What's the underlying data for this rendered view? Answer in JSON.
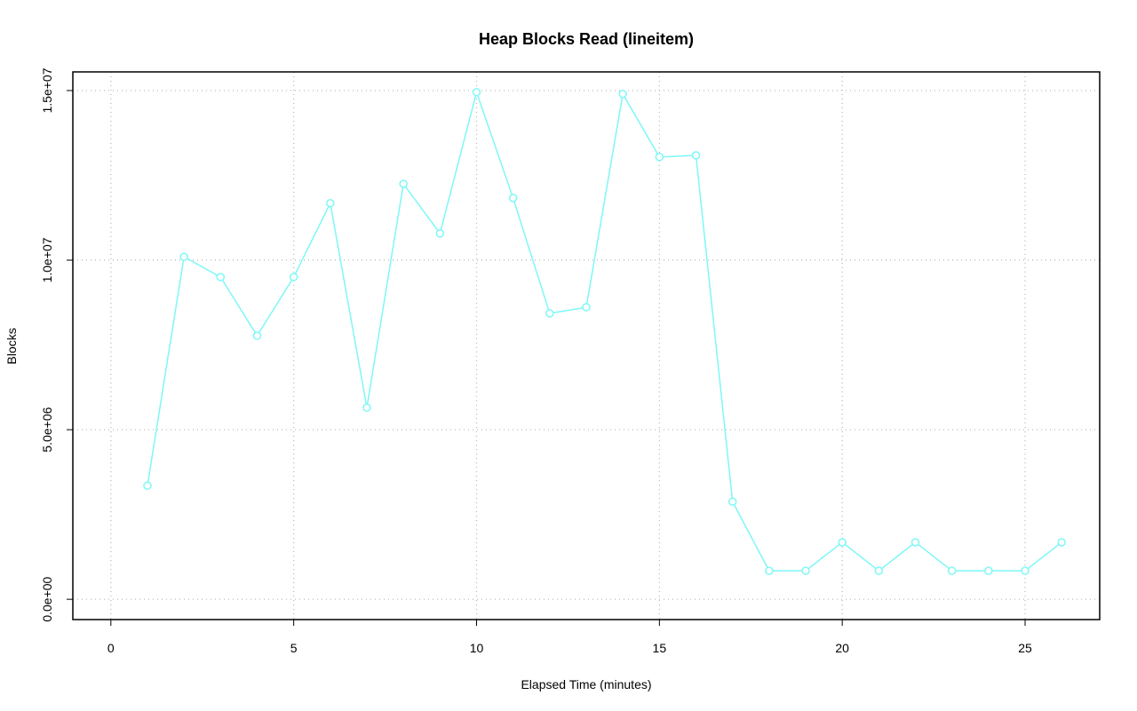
{
  "chart_data": {
    "type": "line",
    "title": "Heap Blocks Read (lineitem)",
    "x_label": "Elapsed Time (minutes)",
    "y_label": "Blocks",
    "x": [
      1,
      2,
      3,
      4,
      5,
      6,
      7,
      8,
      9,
      10,
      11,
      12,
      13,
      14,
      15,
      16,
      17,
      18,
      19,
      20,
      21,
      22,
      23,
      24,
      25,
      26
    ],
    "series": [
      {
        "name": "lineitem",
        "color": "#7ff7f7",
        "values": [
          3350000,
          10100000,
          9500000,
          7770000,
          9500000,
          11680000,
          5650000,
          12250000,
          10790000,
          14950000,
          11830000,
          8430000,
          8610000,
          14900000,
          13040000,
          13090000,
          2880000,
          840000,
          840000,
          1680000,
          840000,
          1680000,
          840000,
          840000,
          840000,
          1680000
        ]
      }
    ],
    "xlim": [
      -1.04,
      27.04
    ],
    "xticks": [
      0,
      5,
      10,
      15,
      20,
      25
    ],
    "ylim": [
      -598000,
      15550000
    ],
    "yticks": [
      {
        "value": 0,
        "label": "0.0e+00"
      },
      {
        "value": 5000000,
        "label": "5.0e+06"
      },
      {
        "value": 10000000,
        "label": "1.0e+07"
      },
      {
        "value": 15000000,
        "label": "1.5e+07"
      }
    ],
    "grid": true
  }
}
